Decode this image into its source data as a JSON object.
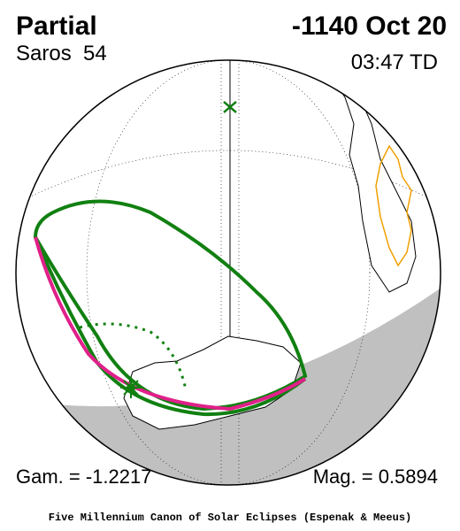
{
  "header": {
    "title": "Partial",
    "date": "-1140 Oct 20",
    "saros": "Saros  54",
    "time": "03:47 TD"
  },
  "footer": {
    "gamma": "Gam. = -1.2217",
    "magnitude": "Mag. = 0.5894",
    "credit": "Five Millennium Canon of Solar Eclipses (Espenak & Meeus)"
  }
}
